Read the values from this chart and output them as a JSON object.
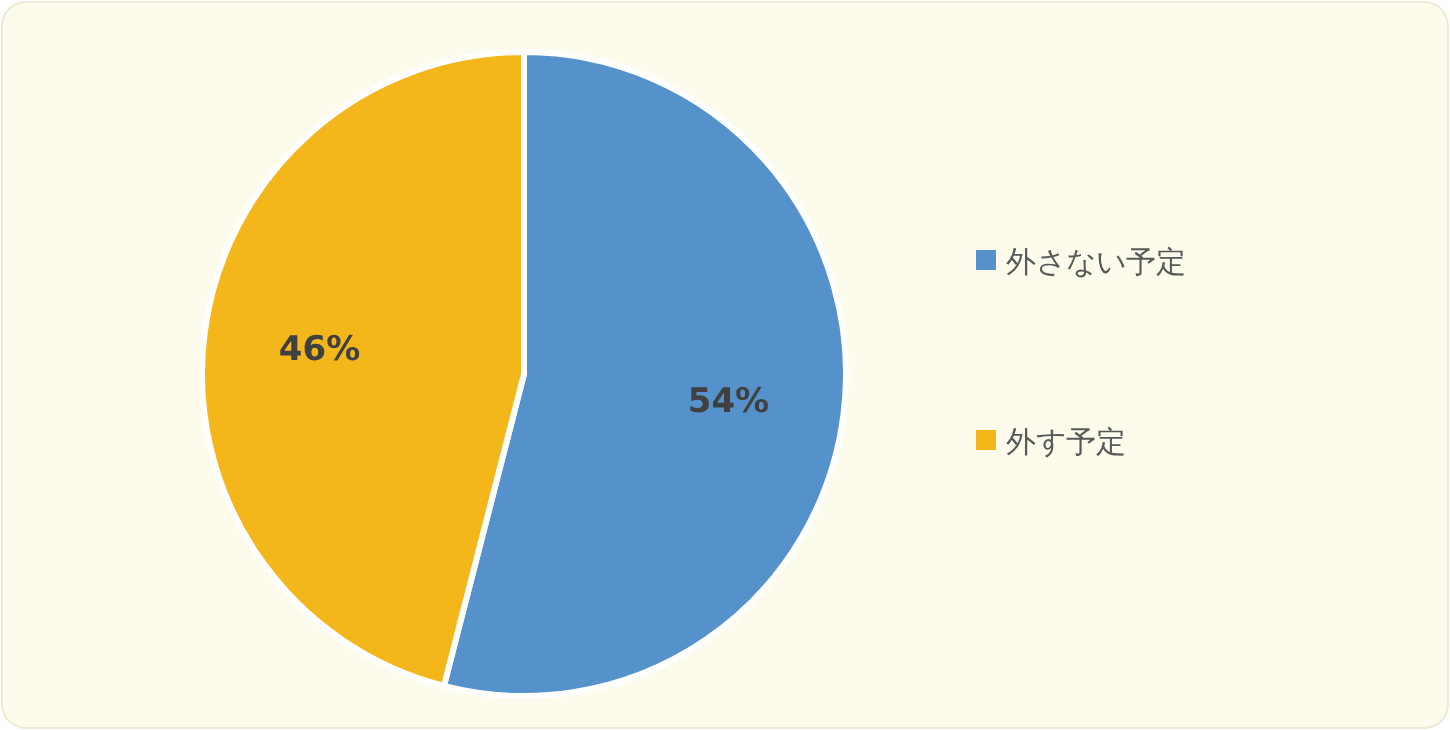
{
  "chart_data": {
    "type": "pie",
    "categories": [
      "外さない予定",
      "外す予定"
    ],
    "values": [
      54,
      46
    ],
    "colors": [
      "#5592cb",
      "#f3b71c"
    ],
    "value_labels": [
      "54%",
      "46%"
    ],
    "legend": "right"
  }
}
